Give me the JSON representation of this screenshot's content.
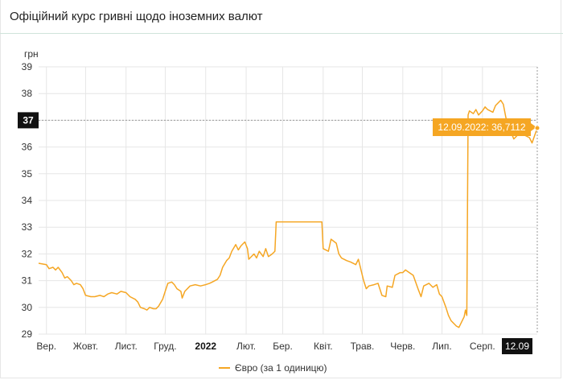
{
  "header": {
    "title": "Офіційний курс гривні щодо іноземних валют"
  },
  "chart_data": {
    "type": "line",
    "title": "Офіційний курс гривні щодо іноземних валют",
    "ylabel": "грн",
    "ylim": [
      29,
      39
    ],
    "yticks": [
      29,
      30,
      31,
      32,
      33,
      34,
      35,
      36,
      37,
      38,
      39
    ],
    "x_range": [
      "2021-08-26",
      "2022-09-12"
    ],
    "x_ticks": [
      {
        "label": "Вер.",
        "date": "2021-09-01",
        "bold": false
      },
      {
        "label": "Жовт.",
        "date": "2021-10-01",
        "bold": false
      },
      {
        "label": "Лист.",
        "date": "2021-11-01",
        "bold": false
      },
      {
        "label": "Груд.",
        "date": "2021-12-01",
        "bold": false
      },
      {
        "label": "2022",
        "date": "2022-01-01",
        "bold": true
      },
      {
        "label": "Лют.",
        "date": "2022-02-01",
        "bold": false
      },
      {
        "label": "Бер.",
        "date": "2022-03-01",
        "bold": false
      },
      {
        "label": "Квіт.",
        "date": "2022-04-01",
        "bold": false
      },
      {
        "label": "Трав.",
        "date": "2022-05-01",
        "bold": false
      },
      {
        "label": "Черв.",
        "date": "2022-06-01",
        "bold": false
      },
      {
        "label": "Лип.",
        "date": "2022-07-01",
        "bold": false
      },
      {
        "label": "Серп.",
        "date": "2022-08-01",
        "bold": false
      }
    ],
    "grid": true,
    "legend_position": "bottom",
    "crosshair": {
      "y_label": "37",
      "x_label": "12.09"
    },
    "tooltip": "12.09.2022: 36,7112",
    "series": [
      {
        "name": "Євро (за 1 одиницю)",
        "color": "#f5a623",
        "points": [
          [
            "2021-08-26",
            31.65
          ],
          [
            "2021-09-01",
            31.6
          ],
          [
            "2021-09-03",
            31.45
          ],
          [
            "2021-09-06",
            31.5
          ],
          [
            "2021-09-08",
            31.4
          ],
          [
            "2021-09-10",
            31.5
          ],
          [
            "2021-09-13",
            31.3
          ],
          [
            "2021-09-15",
            31.1
          ],
          [
            "2021-09-17",
            31.15
          ],
          [
            "2021-09-20",
            31.0
          ],
          [
            "2021-09-22",
            30.85
          ],
          [
            "2021-09-24",
            30.9
          ],
          [
            "2021-09-27",
            30.85
          ],
          [
            "2021-09-29",
            30.7
          ],
          [
            "2021-10-01",
            30.45
          ],
          [
            "2021-10-05",
            30.4
          ],
          [
            "2021-10-08",
            30.4
          ],
          [
            "2021-10-12",
            30.45
          ],
          [
            "2021-10-15",
            30.4
          ],
          [
            "2021-10-18",
            30.5
          ],
          [
            "2021-10-21",
            30.55
          ],
          [
            "2021-10-25",
            30.5
          ],
          [
            "2021-10-28",
            30.6
          ],
          [
            "2021-11-01",
            30.55
          ],
          [
            "2021-11-04",
            30.4
          ],
          [
            "2021-11-08",
            30.3
          ],
          [
            "2021-11-10",
            30.2
          ],
          [
            "2021-11-12",
            30.0
          ],
          [
            "2021-11-15",
            29.95
          ],
          [
            "2021-11-17",
            29.9
          ],
          [
            "2021-11-19",
            30.0
          ],
          [
            "2021-11-22",
            29.95
          ],
          [
            "2021-11-24",
            29.95
          ],
          [
            "2021-11-26",
            30.05
          ],
          [
            "2021-11-29",
            30.3
          ],
          [
            "2021-12-01",
            30.6
          ],
          [
            "2021-12-03",
            30.9
          ],
          [
            "2021-12-06",
            30.95
          ],
          [
            "2021-12-08",
            30.85
          ],
          [
            "2021-12-10",
            30.7
          ],
          [
            "2021-12-13",
            30.6
          ],
          [
            "2021-12-14",
            30.35
          ],
          [
            "2021-12-16",
            30.6
          ],
          [
            "2021-12-20",
            30.8
          ],
          [
            "2021-12-24",
            30.85
          ],
          [
            "2021-12-28",
            30.8
          ],
          [
            "2022-01-01",
            30.85
          ],
          [
            "2022-01-04",
            30.9
          ],
          [
            "2022-01-06",
            30.95
          ],
          [
            "2022-01-10",
            31.05
          ],
          [
            "2022-01-12",
            31.2
          ],
          [
            "2022-01-14",
            31.5
          ],
          [
            "2022-01-17",
            31.75
          ],
          [
            "2022-01-19",
            31.85
          ],
          [
            "2022-01-21",
            32.1
          ],
          [
            "2022-01-24",
            32.35
          ],
          [
            "2022-01-26",
            32.15
          ],
          [
            "2022-01-28",
            32.3
          ],
          [
            "2022-01-31",
            32.45
          ],
          [
            "2022-02-02",
            32.2
          ],
          [
            "2022-02-03",
            31.8
          ],
          [
            "2022-02-07",
            32.0
          ],
          [
            "2022-02-09",
            31.85
          ],
          [
            "2022-02-11",
            32.1
          ],
          [
            "2022-02-14",
            31.9
          ],
          [
            "2022-02-16",
            32.2
          ],
          [
            "2022-02-18",
            31.9
          ],
          [
            "2022-02-21",
            32.0
          ],
          [
            "2022-02-23",
            32.1
          ],
          [
            "2022-02-24",
            33.2
          ],
          [
            "2022-03-15",
            33.2
          ],
          [
            "2022-03-31",
            33.2
          ],
          [
            "2022-04-01",
            32.2
          ],
          [
            "2022-04-05",
            32.1
          ],
          [
            "2022-04-07",
            32.55
          ],
          [
            "2022-04-11",
            32.4
          ],
          [
            "2022-04-13",
            32.0
          ],
          [
            "2022-04-15",
            31.85
          ],
          [
            "2022-04-19",
            31.75
          ],
          [
            "2022-04-22",
            31.7
          ],
          [
            "2022-04-26",
            31.6
          ],
          [
            "2022-04-28",
            31.8
          ],
          [
            "2022-05-02",
            31.0
          ],
          [
            "2022-05-04",
            30.7
          ],
          [
            "2022-05-06",
            30.8
          ],
          [
            "2022-05-10",
            30.85
          ],
          [
            "2022-05-13",
            30.9
          ],
          [
            "2022-05-16",
            30.45
          ],
          [
            "2022-05-19",
            30.4
          ],
          [
            "2022-05-20",
            30.8
          ],
          [
            "2022-05-24",
            30.75
          ],
          [
            "2022-05-26",
            31.2
          ],
          [
            "2022-05-30",
            31.3
          ],
          [
            "2022-06-01",
            31.3
          ],
          [
            "2022-06-03",
            31.4
          ],
          [
            "2022-06-06",
            31.3
          ],
          [
            "2022-06-09",
            31.2
          ],
          [
            "2022-06-13",
            30.65
          ],
          [
            "2022-06-15",
            30.4
          ],
          [
            "2022-06-17",
            30.8
          ],
          [
            "2022-06-21",
            30.9
          ],
          [
            "2022-06-24",
            30.75
          ],
          [
            "2022-06-27",
            30.85
          ],
          [
            "2022-06-29",
            30.5
          ],
          [
            "2022-07-01",
            30.4
          ],
          [
            "2022-07-04",
            30.0
          ],
          [
            "2022-07-06",
            29.7
          ],
          [
            "2022-07-08",
            29.5
          ],
          [
            "2022-07-12",
            29.3
          ],
          [
            "2022-07-14",
            29.25
          ],
          [
            "2022-07-18",
            29.65
          ],
          [
            "2022-07-19",
            29.9
          ],
          [
            "2022-07-20",
            29.7
          ],
          [
            "2022-07-21",
            37.2
          ],
          [
            "2022-07-22",
            37.35
          ],
          [
            "2022-07-25",
            37.25
          ],
          [
            "2022-07-27",
            37.4
          ],
          [
            "2022-07-29",
            37.2
          ],
          [
            "2022-08-01",
            37.35
          ],
          [
            "2022-08-03",
            37.5
          ],
          [
            "2022-08-05",
            37.4
          ],
          [
            "2022-08-09",
            37.3
          ],
          [
            "2022-08-11",
            37.55
          ],
          [
            "2022-08-15",
            37.75
          ],
          [
            "2022-08-17",
            37.6
          ],
          [
            "2022-08-19",
            37.1
          ],
          [
            "2022-08-23",
            36.55
          ],
          [
            "2022-08-25",
            36.3
          ],
          [
            "2022-08-29",
            36.5
          ],
          [
            "2022-08-31",
            36.6
          ],
          [
            "2022-09-02",
            36.45
          ],
          [
            "2022-09-06",
            36.35
          ],
          [
            "2022-09-08",
            36.15
          ],
          [
            "2022-09-12",
            36.7112
          ]
        ]
      }
    ]
  }
}
